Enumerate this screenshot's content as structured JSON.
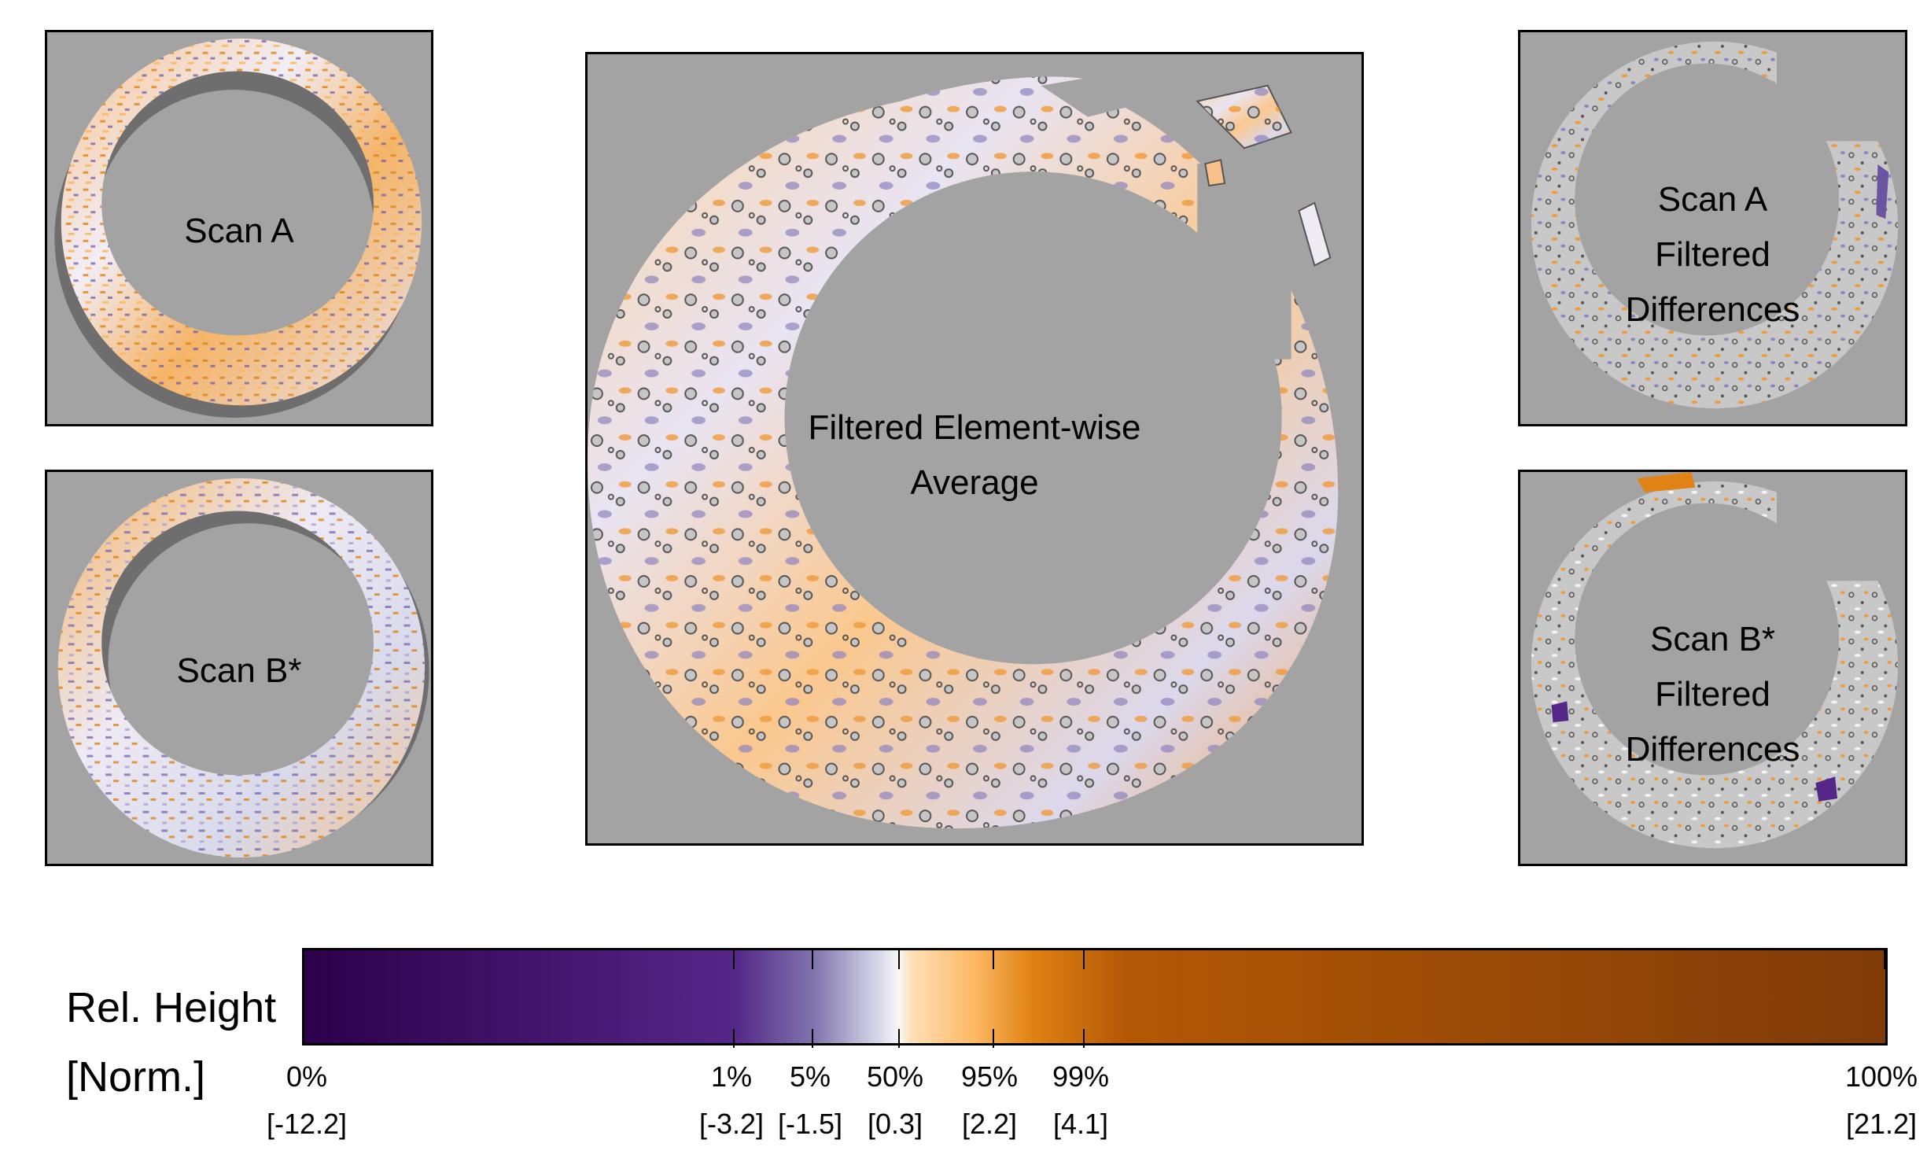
{
  "panels": {
    "scan_a": {
      "label": "Scan A"
    },
    "scan_b": {
      "label": "Scan B*"
    },
    "average": {
      "label": "Filtered Element-wise\nAverage"
    },
    "diff_a": {
      "label": "Scan A\nFiltered\nDifferences"
    },
    "diff_b": {
      "label": "Scan B*\nFiltered\nDifferences"
    }
  },
  "colorbar": {
    "label_line1": "Rel. Height",
    "label_line2": "[Norm.]",
    "colors": {
      "min": "#2d004b",
      "low": "#542788",
      "mid": "#f7f7f7",
      "high": "#b35806",
      "max": "#7f3b08"
    },
    "ticks": [
      {
        "percent": "0%",
        "value": "[-12.2]"
      },
      {
        "percent": "1%",
        "value": "[-3.2]"
      },
      {
        "percent": "5%",
        "value": "[-1.5]"
      },
      {
        "percent": "50%",
        "value": "[0.3]"
      },
      {
        "percent": "95%",
        "value": "[2.2]"
      },
      {
        "percent": "99%",
        "value": "[4.1]"
      },
      {
        "percent": "100%",
        "value": "[21.2]"
      }
    ]
  }
}
